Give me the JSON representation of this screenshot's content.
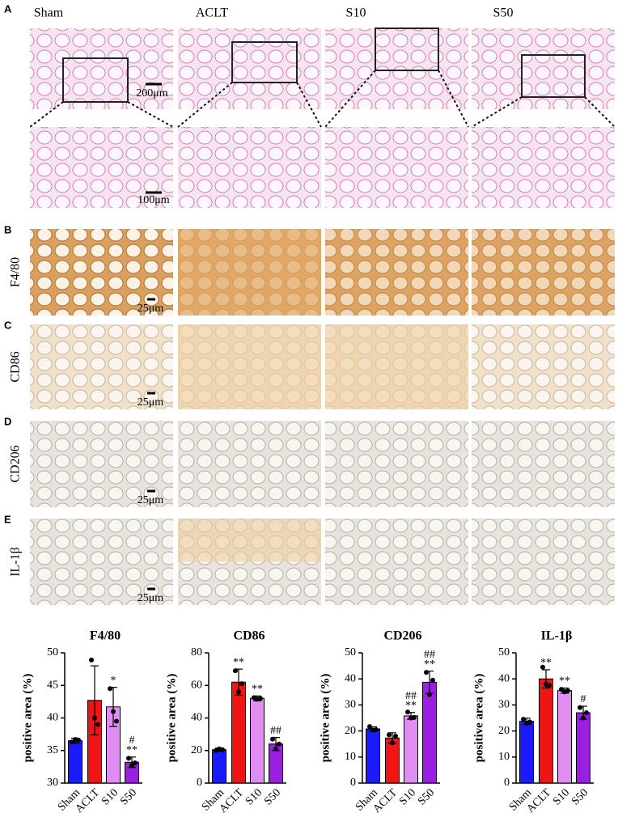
{
  "figure": {
    "panel_labels": [
      "A",
      "B",
      "C",
      "D",
      "E"
    ],
    "columns": [
      "Sham",
      "ACLT",
      "S10",
      "S50"
    ],
    "scale_top": "200μm",
    "scale_zoom": "100μm",
    "rows": [
      {
        "label": "F4/80",
        "scale": "25μm"
      },
      {
        "label": "CD86",
        "scale": "25μm"
      },
      {
        "label": "CD206",
        "scale": "25μm"
      },
      {
        "label": "IL-1β",
        "scale": "25μm"
      }
    ]
  },
  "chart_data": [
    {
      "type": "bar",
      "title": "F4/80",
      "ylabel": "positive area (%)",
      "categories": [
        "Sham",
        "ACLT",
        "S10",
        "S50"
      ],
      "colors": [
        "#1a1aff",
        "#f01414",
        "#e08ef2",
        "#9a1fe0"
      ],
      "values": [
        36.5,
        42.7,
        41.7,
        33.2
      ],
      "errors": [
        0.4,
        5.3,
        3.0,
        0.8
      ],
      "points": [
        [
          36.3,
          36.7,
          36.6
        ],
        [
          48.9,
          40.0,
          39.0
        ],
        [
          44.5,
          41.0,
          39.5
        ],
        [
          33.8,
          32.7,
          33.1
        ]
      ],
      "annotations": [
        [],
        [],
        [
          "*"
        ],
        [
          "#",
          "**"
        ]
      ],
      "ylim": [
        30,
        50
      ],
      "yticks": [
        30,
        35,
        40,
        45,
        50
      ]
    },
    {
      "type": "bar",
      "title": "CD86",
      "ylabel": "positive area (%)",
      "categories": [
        "Sham",
        "ACLT",
        "S10",
        "S50"
      ],
      "colors": [
        "#1a1aff",
        "#f01414",
        "#e08ef2",
        "#9a1fe0"
      ],
      "values": [
        20.5,
        62,
        52,
        24
      ],
      "errors": [
        1,
        8,
        1.5,
        4
      ],
      "points": [
        [
          20,
          21,
          20.5
        ],
        [
          69,
          56,
          61
        ],
        [
          52.5,
          51.5,
          52
        ],
        [
          27,
          21,
          24
        ]
      ],
      "annotations": [
        [],
        [
          "**"
        ],
        [
          "**"
        ],
        [
          "##"
        ]
      ],
      "ylim": [
        0,
        80
      ],
      "yticks": [
        0,
        20,
        40,
        60,
        80
      ]
    },
    {
      "type": "bar",
      "title": "CD206",
      "ylabel": "positive area (%)",
      "categories": [
        "Sham",
        "ACLT",
        "S10",
        "S50"
      ],
      "colors": [
        "#1a1aff",
        "#f01414",
        "#e08ef2",
        "#9a1fe0"
      ],
      "values": [
        20.8,
        17.3,
        25.8,
        38.7
      ],
      "errors": [
        0.8,
        2,
        1.3,
        4.3
      ],
      "points": [
        [
          21.7,
          20.3,
          20.5
        ],
        [
          18.5,
          15.5,
          18
        ],
        [
          27.3,
          25,
          25.2
        ],
        [
          42.5,
          34,
          39.5
        ]
      ],
      "annotations": [
        [],
        [],
        [
          "##",
          "**"
        ],
        [
          "##",
          "**"
        ]
      ],
      "ylim": [
        0,
        50
      ],
      "yticks": [
        0,
        10,
        20,
        30,
        40,
        50
      ]
    },
    {
      "type": "bar",
      "title": "IL-1β",
      "ylabel": "positive area (%)",
      "categories": [
        "Sham",
        "ACLT",
        "S10",
        "S50"
      ],
      "colors": [
        "#1a1aff",
        "#f01414",
        "#e08ef2",
        "#9a1fe0"
      ],
      "values": [
        23.7,
        40,
        35.5,
        27
      ],
      "errors": [
        1.2,
        3.5,
        1,
        2.5
      ],
      "points": [
        [
          24.5,
          23,
          23.5
        ],
        [
          44.5,
          38,
          37.5
        ],
        [
          36,
          35,
          35.5
        ],
        [
          29,
          25,
          27
        ]
      ],
      "annotations": [
        [],
        [
          "**"
        ],
        [
          "**"
        ],
        [
          "#"
        ]
      ],
      "ylim": [
        0,
        50
      ],
      "yticks": [
        0,
        10,
        20,
        30,
        40,
        50
      ]
    }
  ]
}
